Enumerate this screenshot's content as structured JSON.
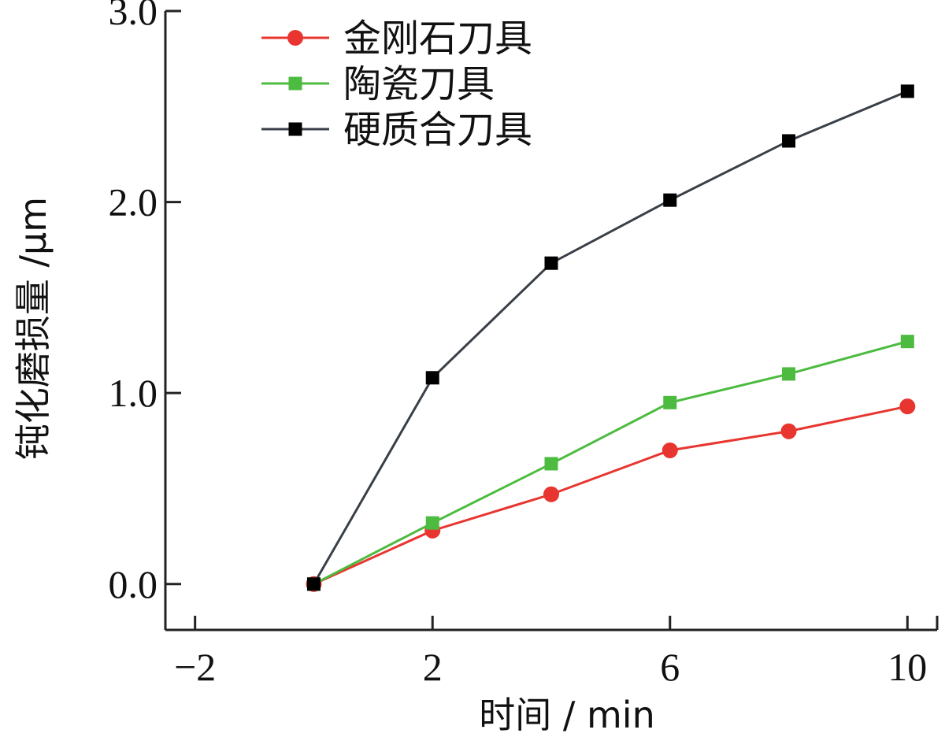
{
  "chart_data": {
    "type": "line",
    "title": "",
    "xlabel": "时间 / min",
    "ylabel": "钝化磨损量 /μm",
    "xlim": [
      -2.5,
      10.5
    ],
    "ylim": [
      -0.24,
      3.0
    ],
    "x_ticks": [
      -2,
      2,
      6,
      10
    ],
    "x_tick_labels": [
      "−2",
      "2",
      "6",
      "10"
    ],
    "y_ticks": [
      0.0,
      1.0,
      2.0,
      3.0
    ],
    "y_tick_labels": [
      "0.0",
      "1.0",
      "2.0",
      "3.0"
    ],
    "grid": false,
    "legend_position": "top-left",
    "x": [
      0,
      2,
      4,
      6,
      8,
      10
    ],
    "series": [
      {
        "name": "金刚石刀具",
        "color": "#e8352f",
        "marker": "circle",
        "values": [
          0.0,
          0.28,
          0.47,
          0.7,
          0.8,
          0.93
        ]
      },
      {
        "name": "陶瓷刀具",
        "color": "#4cbb3f",
        "marker": "square",
        "values": [
          0.0,
          0.32,
          0.63,
          0.95,
          1.1,
          1.27
        ]
      },
      {
        "name": "硬质合刀具",
        "color": "#3a4048",
        "marker_color": "#000000",
        "marker": "square",
        "values": [
          0.0,
          1.08,
          1.68,
          2.01,
          2.32,
          2.58
        ]
      }
    ]
  }
}
